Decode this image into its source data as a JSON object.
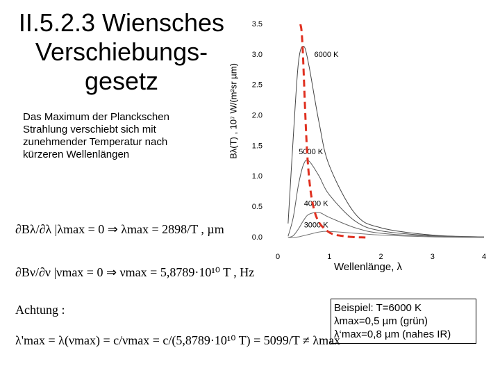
{
  "slide": {
    "title_lines": [
      "II.5.2.3 Wiensches",
      "Verschiebungs-",
      "gesetz"
    ],
    "text": "Das Maximum der Planckschen Strahlung verschiebt sich mit zunehmender Temperatur nach kürzeren Wellenlängen",
    "formulas": [
      "∂Bλ/∂λ |λmax = 0 ⇒ λmax = 2898/T , µm",
      "∂Bν/∂ν |νmax = 0 ⇒ νmax = 5,8789·10¹⁰ T , Hz",
      "Achtung :",
      "λ'max = λ(νmax) = c/νmax = c/(5,8789·10¹⁰ T) = 5099/T ≠ λmax"
    ],
    "box_lines": [
      "Beispiel: T=6000 K",
      "λmax=0,5 µm (grün)",
      "λ‘max=0,8 µm (nahes IR)"
    ]
  },
  "chart_data": {
    "type": "line",
    "y_label": "Bλ(T) , 10⁷ W/(m²sr µm)",
    "x_label": "Wellenlänge, λ",
    "x": [
      0.2,
      0.3,
      0.4,
      0.5,
      0.6,
      0.8,
      1.0,
      1.5,
      2.0,
      3.0,
      4.0
    ],
    "series": [
      {
        "name": "6000 K",
        "color": "#444444",
        "values": [
          0.23,
          1.64,
          2.87,
          3.14,
          2.84,
          1.89,
          1.18,
          0.39,
          0.16,
          0.04,
          0.01
        ]
      },
      {
        "name": "5000 K",
        "color": "#555555",
        "values": [
          0.02,
          0.33,
          0.86,
          1.2,
          1.26,
          1.01,
          0.7,
          0.27,
          0.11,
          0.03,
          0.01
        ]
      },
      {
        "name": "4000 K",
        "color": "#666666",
        "values": [
          0,
          0.03,
          0.14,
          0.28,
          0.38,
          0.41,
          0.33,
          0.16,
          0.07,
          0.02,
          0.01
        ]
      },
      {
        "name": "3000 K",
        "color": "#777777",
        "values": [
          0,
          0,
          0.01,
          0.03,
          0.05,
          0.09,
          0.1,
          0.07,
          0.04,
          0.01,
          0
        ]
      }
    ],
    "peak_line": {
      "color": "#e03020",
      "x": [
        0.44,
        0.48,
        0.58,
        0.72,
        0.97,
        1.3,
        1.7
      ],
      "values": [
        3.5,
        3.15,
        1.26,
        0.41,
        0.1,
        0.02,
        0
      ]
    },
    "xlim": [
      0,
      4
    ],
    "xticks": [
      0,
      1,
      2,
      3,
      4
    ],
    "ylim": [
      0,
      3.5
    ],
    "yticks": [
      {
        "value": 0,
        "label": "0.0"
      },
      0.5,
      {
        "value": 1,
        "label": "1.0"
      },
      1.5,
      {
        "value": 2,
        "label": "2.0"
      },
      2.5,
      {
        "value": 3,
        "label": "3.0"
      },
      3.5
    ],
    "grid": false
  }
}
